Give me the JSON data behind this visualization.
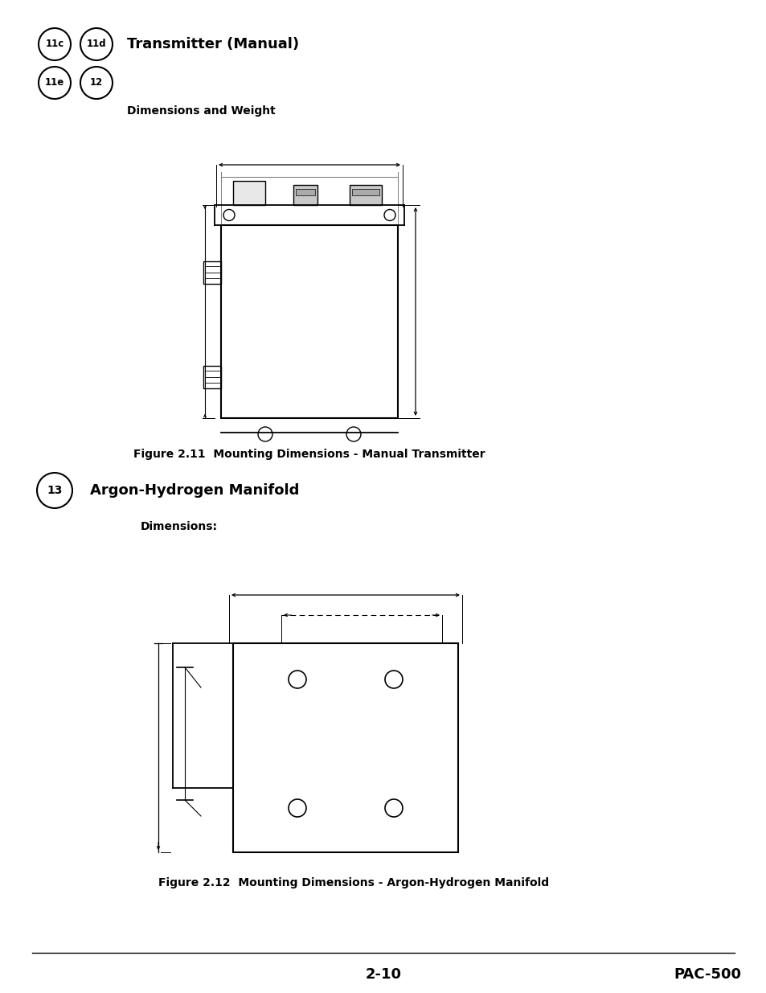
{
  "page_bg": "#ffffff",
  "title1": "Transmitter (Manual)",
  "title2": "Argon-Hydrogen Manifold",
  "subtitle1": "Dimensions and Weight",
  "subtitle2": "Dimensions:",
  "fig1_caption": "Figure 2.11  Mounting Dimensions - Manual Transmitter",
  "fig2_caption": "Figure 2.12  Mounting Dimensions - Argon-Hydrogen Manifold",
  "page_num": "2-10",
  "product": "PAC-500",
  "badges1": [
    "11c",
    "11d",
    "11e",
    "12"
  ],
  "badge2": "13"
}
